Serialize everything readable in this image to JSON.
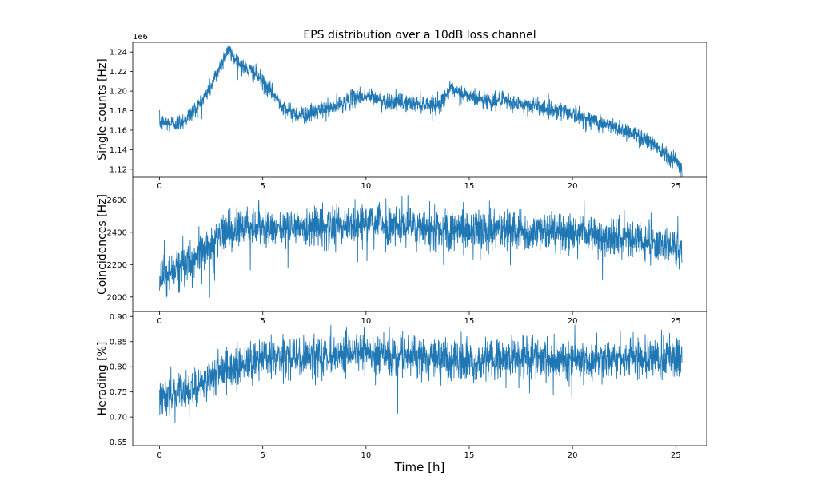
{
  "title": "EPS distribution over a 10dB loss channel",
  "xlabel": "Time [h]",
  "chart_data": [
    {
      "type": "line",
      "title": "EPS distribution over a 10dB loss channel",
      "ylabel": "Single counts [Hz]",
      "offset_text": "1e6",
      "xlim": [
        -1.3,
        26.5
      ],
      "ylim": [
        1.1125,
        1.25
      ],
      "xticks": [
        0,
        5,
        10,
        15,
        20,
        25
      ],
      "xtick_labels": [
        "0",
        "5",
        "10",
        "15",
        "20",
        "25"
      ],
      "yticks": [
        1.12,
        1.14,
        1.16,
        1.18,
        1.2,
        1.22,
        1.24
      ],
      "ytick_labels": [
        "1.12",
        "1.14",
        "1.16",
        "1.18",
        "1.20",
        "1.22",
        "1.24"
      ],
      "color": "#1f77b4",
      "noise": 0.0045,
      "x": [
        0,
        0.5,
        1.0,
        1.5,
        2.0,
        2.5,
        3.0,
        3.3,
        3.7,
        4.2,
        4.7,
        5.2,
        5.7,
        6.2,
        6.7,
        7.2,
        7.7,
        8.2,
        8.7,
        9.2,
        9.7,
        10.2,
        10.7,
        11.2,
        11.7,
        12.2,
        12.7,
        13.2,
        13.6,
        14.0,
        14.5,
        15.0,
        15.5,
        16.0,
        16.5,
        17.0,
        17.5,
        18.0,
        18.5,
        19.0,
        19.5,
        20.0,
        20.5,
        21.0,
        21.5,
        22.0,
        22.5,
        23.0,
        23.5,
        24.0,
        24.5,
        25.0,
        25.3
      ],
      "y": [
        1.168,
        1.167,
        1.168,
        1.176,
        1.188,
        1.205,
        1.229,
        1.242,
        1.232,
        1.222,
        1.217,
        1.204,
        1.192,
        1.18,
        1.176,
        1.176,
        1.18,
        1.182,
        1.186,
        1.191,
        1.195,
        1.194,
        1.191,
        1.189,
        1.188,
        1.188,
        1.187,
        1.186,
        1.187,
        1.2,
        1.198,
        1.195,
        1.192,
        1.19,
        1.19,
        1.188,
        1.186,
        1.186,
        1.184,
        1.181,
        1.18,
        1.177,
        1.173,
        1.17,
        1.166,
        1.163,
        1.16,
        1.156,
        1.151,
        1.145,
        1.137,
        1.128,
        1.121
      ]
    },
    {
      "type": "line",
      "ylabel": "Coincidences [Hz]",
      "xlim": [
        -1.3,
        26.5
      ],
      "ylim": [
        1910,
        2740
      ],
      "xticks": [
        0,
        5,
        10,
        15,
        20,
        25
      ],
      "xtick_labels": [
        "0",
        "5",
        "10",
        "15",
        "20",
        "25"
      ],
      "yticks": [
        2000,
        2200,
        2400,
        2600
      ],
      "ytick_labels": [
        "2000",
        "2200",
        "2400",
        "2600"
      ],
      "color": "#1f77b4",
      "noise": 60,
      "x": [
        0,
        0.5,
        1.0,
        1.5,
        2.0,
        2.5,
        3.0,
        3.5,
        4.0,
        5.0,
        6.0,
        7.0,
        8.0,
        9.0,
        10.0,
        11.0,
        12.0,
        13.0,
        14.0,
        15.0,
        16.0,
        17.0,
        18.0,
        19.0,
        20.0,
        21.0,
        22.0,
        23.0,
        24.0,
        25.0,
        25.3
      ],
      "y": [
        2130,
        2150,
        2180,
        2230,
        2270,
        2330,
        2390,
        2410,
        2420,
        2430,
        2430,
        2430,
        2440,
        2450,
        2460,
        2450,
        2430,
        2420,
        2410,
        2410,
        2420,
        2420,
        2410,
        2400,
        2400,
        2390,
        2370,
        2350,
        2330,
        2310,
        2300
      ]
    },
    {
      "type": "line",
      "ylabel": "Herading [%]",
      "xlim": [
        -1.3,
        26.5
      ],
      "ylim": [
        0.643,
        0.91
      ],
      "xticks": [
        0,
        5,
        10,
        15,
        20,
        25
      ],
      "xtick_labels": [
        "0",
        "5",
        "10",
        "15",
        "20",
        "25"
      ],
      "yticks": [
        0.65,
        0.7,
        0.75,
        0.8,
        0.85,
        0.9
      ],
      "ytick_labels": [
        "0.65",
        "0.70",
        "0.75",
        "0.80",
        "0.85",
        "0.90"
      ],
      "color": "#1f77b4",
      "noise": 0.02,
      "x": [
        0,
        0.5,
        1.0,
        1.5,
        2.0,
        2.5,
        3.0,
        3.5,
        4.0,
        5.0,
        6.0,
        7.0,
        8.0,
        9.0,
        10.0,
        11.0,
        12.0,
        13.0,
        14.0,
        15.0,
        16.0,
        17.0,
        18.0,
        19.0,
        20.0,
        21.0,
        22.0,
        23.0,
        24.0,
        25.0,
        25.3
      ],
      "y": [
        0.735,
        0.74,
        0.748,
        0.755,
        0.765,
        0.78,
        0.795,
        0.8,
        0.805,
        0.815,
        0.818,
        0.82,
        0.822,
        0.825,
        0.828,
        0.825,
        0.822,
        0.818,
        0.812,
        0.812,
        0.815,
        0.818,
        0.815,
        0.812,
        0.815,
        0.815,
        0.818,
        0.818,
        0.818,
        0.82,
        0.82
      ]
    }
  ]
}
